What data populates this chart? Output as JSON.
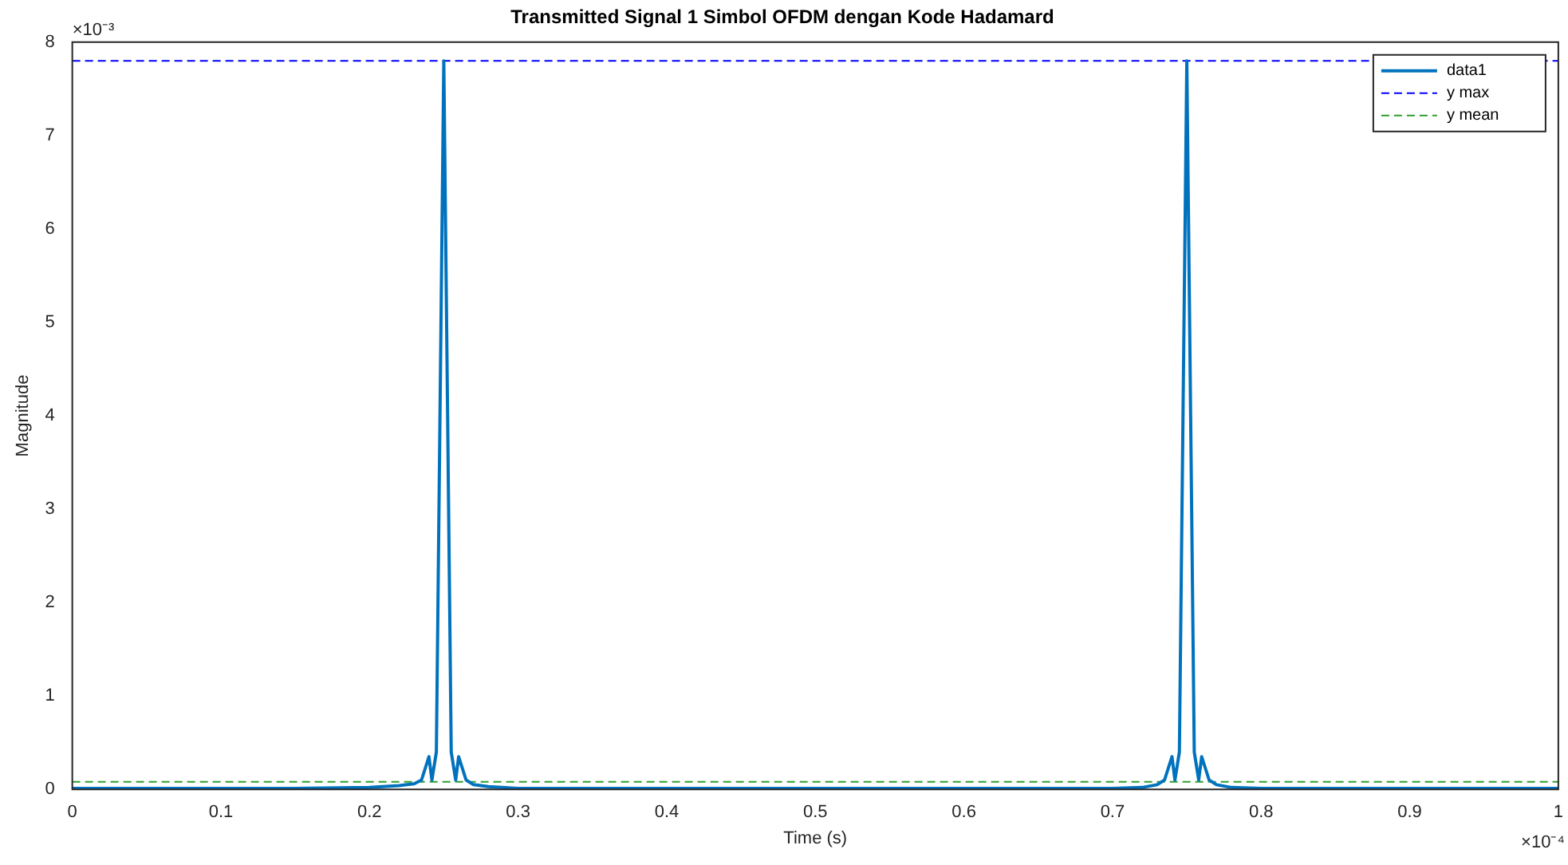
{
  "chart_data": {
    "type": "line",
    "title": "Transmitted Signal 1 Simbol OFDM dengan Kode Hadamard",
    "xlabel": "Time (s)",
    "ylabel": "Magnitude",
    "annotations": [
      "×10⁻³",
      "×10⁻⁴"
    ],
    "xlim": [
      0,
      1
    ],
    "xticks": [
      0,
      0.1,
      0.2,
      0.3,
      0.4,
      0.5,
      0.6,
      0.7,
      0.8,
      0.9,
      1
    ],
    "ylim": [
      0,
      8
    ],
    "yticks": [
      0,
      1,
      2,
      3,
      4,
      5,
      6,
      7,
      8
    ],
    "grid": false,
    "legend": "top right",
    "marker": "none",
    "line_style": "solid",
    "series": [
      {
        "name": "data1",
        "color": "#0072bd",
        "x": [
          0,
          0.15,
          0.2,
          0.22,
          0.23,
          0.235,
          0.24,
          0.242,
          0.245,
          0.25,
          0.255,
          0.258,
          0.26,
          0.265,
          0.27,
          0.28,
          0.3,
          0.7,
          0.72,
          0.73,
          0.735,
          0.74,
          0.742,
          0.745,
          0.75,
          0.755,
          0.758,
          0.76,
          0.765,
          0.77,
          0.78,
          0.8,
          1
        ],
        "values": [
          0.01,
          0.01,
          0.02,
          0.04,
          0.06,
          0.1,
          0.35,
          0.1,
          0.4,
          7.8,
          0.4,
          0.1,
          0.35,
          0.1,
          0.05,
          0.03,
          0.01,
          0.01,
          0.02,
          0.05,
          0.1,
          0.35,
          0.1,
          0.4,
          7.8,
          0.4,
          0.1,
          0.35,
          0.1,
          0.05,
          0.02,
          0.01,
          0.01
        ]
      }
    ],
    "ref_lines": [
      {
        "axis": "y",
        "value": 7.8,
        "label": "y max",
        "color": "#0000ff",
        "line_style": "dashed"
      },
      {
        "axis": "y",
        "value": 0.08,
        "label": "y mean",
        "color": "#2ca02c",
        "line_style": "dashed"
      }
    ]
  }
}
